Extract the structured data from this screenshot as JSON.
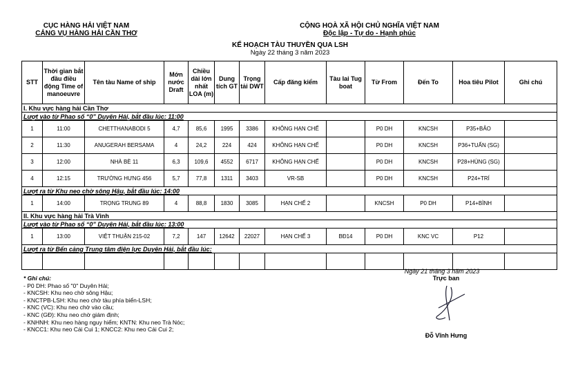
{
  "header": {
    "left_line1": "CỤC HÀNG HẢI VIỆT NAM",
    "left_line2": "CẢNG VỤ HÀNG HẢI CẦN THƠ",
    "right_line1": "CỘNG HOÀ XÃ HỘI CHỦ NGHĨA VIỆT NAM",
    "right_line2": "Độc lập - Tự do - Hạnh phúc",
    "title": "KẾ HOẠCH TÀU THUYỀN QUA LSH",
    "date": "Ngày 22 tháng 3 năm 2023"
  },
  "columns": [
    "STT",
    "Thời gian bắt đầu điều động Time of manoeuvre",
    "Tên tàu Name of ship",
    "Mớn nước Draft",
    "Chiều dài lớn nhất LOA (m)",
    "Dung tích GT",
    "Trọng tải DWT",
    "Cấp đăng kiểm",
    "Tàu lai Tug boat",
    "Từ From",
    "Đến To",
    "Hoa tiêu Pilot",
    "Ghi chú"
  ],
  "sections": [
    {
      "title": "I. Khu vực hàng hải Cần Thơ",
      "groups": [
        {
          "title": "Lượt vào từ Phao số “0” Duyên Hải, bắt đầu lúc: 11:00",
          "rows": [
            [
              "1",
              "11:00",
              "CHETTHANABODI 5",
              "4,7",
              "85,6",
              "1995",
              "3386",
              "KHÔNG HẠN CHẾ",
              "",
              "P0 DH",
              "KNCSH",
              "P35+BẢO",
              ""
            ],
            [
              "2",
              "11:30",
              "ANUGERAH BERSAMA",
              "4",
              "24,2",
              "224",
              "424",
              "KHÔNG HẠN CHẾ",
              "",
              "P0 DH",
              "KNCSH",
              "P36+TUẤN (SG)",
              ""
            ],
            [
              "3",
              "12:00",
              "NHÀ BÈ 11",
              "6,3",
              "109,6",
              "4552",
              "6717",
              "KHÔNG HẠN CHẾ",
              "",
              "P0 DH",
              "KNCSH",
              "P28+HÙNG (SG)",
              ""
            ],
            [
              "4",
              "12:15",
              "TRƯỜNG HƯNG 456",
              "5,7",
              "77,8",
              "1311",
              "3403",
              "VR-SB",
              "",
              "P0 DH",
              "KNCSH",
              "P24+TRÍ",
              ""
            ]
          ]
        },
        {
          "title": "Lượt ra từ Khu neo chờ sông Hậu, bắt đầu lúc: 14:00",
          "rows": [
            [
              "1",
              "14:00",
              "TRỌNG TRUNG 89",
              "4",
              "88,8",
              "1830",
              "3085",
              "HẠN CHẾ 2",
              "",
              "KNCSH",
              "P0 DH",
              "P14+BÌNH",
              ""
            ]
          ]
        }
      ]
    },
    {
      "title": "II. Khu vực hàng hải Trà Vinh",
      "groups": [
        {
          "title": "Lượt vào từ Phao số “0” Duyên Hải, bắt đầu lúc: 13:00",
          "rows": [
            [
              "1",
              "13:00",
              "VIỆT THUẬN 215-02",
              "7,2",
              "147",
              "12642",
              "22027",
              "HẠN CHẾ 3",
              "BĐ14",
              "P0 DH",
              "KNC VC",
              "P12",
              ""
            ]
          ]
        },
        {
          "title": "Lượt ra từ Bến cảng Trung tâm điện lực Duyên Hải, bắt đầu lúc:",
          "rows": [
            [
              "",
              "",
              "",
              "",
              "",
              "",
              "",
              "",
              "",
              "",
              "",
              "",
              ""
            ]
          ]
        }
      ]
    }
  ],
  "notes": {
    "title": "* Ghi chú:",
    "items": [
      "- P0 DH: Phao số \"0\" Duyên Hải;",
      "- KNCSH: Khu neo chờ sông Hậu;",
      "- KNCTPB-LSH: Khu neo chờ tàu phía biển-LSH;",
      "- KNC (VC): Khu neo chờ vào cầu;",
      "- KNC (GĐ): Khu neo chờ giám định;",
      "- KNHNH: Khu neo hàng nguy hiểm; KNTN: Khu neo Trà Nóc;",
      "- KNCC1: Khu neo Cái Cui 1; KNCC2: Khu neo Cái Cui 2;"
    ]
  },
  "signature": {
    "date": "Ngày 21 tháng 3 năm 2023",
    "role": "Trực ban",
    "name": "Đỗ Vĩnh Hưng"
  }
}
